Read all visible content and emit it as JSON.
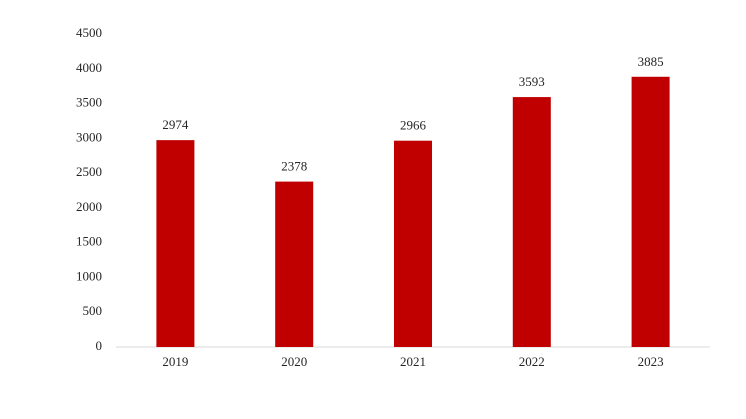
{
  "chart_data": {
    "type": "bar",
    "categories": [
      "2019",
      "2020",
      "2021",
      "2022",
      "2023"
    ],
    "values": [
      2974,
      2378,
      2966,
      3593,
      3885
    ],
    "color": "#c00000",
    "ylim": [
      0,
      4500
    ],
    "yticks": [
      0,
      500,
      1000,
      1500,
      2000,
      2500,
      3000,
      3500,
      4000,
      4500
    ],
    "grid": false
  }
}
